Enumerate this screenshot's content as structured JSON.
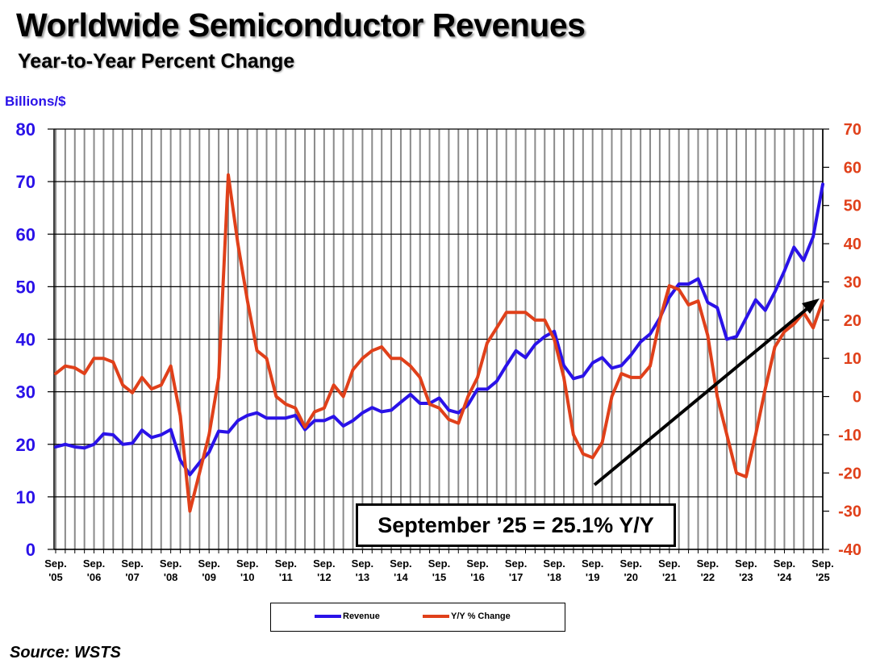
{
  "title": "Worldwide Semiconductor Revenues",
  "subtitle": "Year-to-Year Percent Change",
  "source": "Source: WSTS",
  "annotation": "September ’25 = 25.1% Y/Y",
  "chart_data": {
    "type": "line",
    "ylabel": "Billions/$",
    "ylim": [
      0,
      80
    ],
    "y2lim": [
      -40,
      70
    ],
    "yticks": [
      0,
      10,
      20,
      30,
      40,
      50,
      60,
      70,
      80
    ],
    "y2ticks": [
      -40,
      -30,
      -20,
      -10,
      0,
      10,
      20,
      30,
      40,
      50,
      60,
      70
    ],
    "xtick_labels": [
      [
        "Sep.",
        "'05"
      ],
      [
        "Sep.",
        "'06"
      ],
      [
        "Sep.",
        "'07"
      ],
      [
        "Sep.",
        "'08"
      ],
      [
        "Sep.",
        "'09"
      ],
      [
        "Sep.",
        "'10"
      ],
      [
        "Sep.",
        "'11"
      ],
      [
        "Sep.",
        "'12"
      ],
      [
        "Sep.",
        "'13"
      ],
      [
        "Sep.",
        "'14"
      ],
      [
        "Sep.",
        "'15"
      ],
      [
        "Sep.",
        "'16"
      ],
      [
        "Sep.",
        "'17"
      ],
      [
        "Sep.",
        "'18"
      ],
      [
        "Sep.",
        "'19"
      ],
      [
        "Sep.",
        "'20"
      ],
      [
        "Sep.",
        "'21"
      ],
      [
        "Sep.",
        "'22"
      ],
      [
        "Sep.",
        "'23"
      ],
      [
        "Sep.",
        "'24"
      ],
      [
        "Sep.",
        "'25"
      ]
    ],
    "x_period": "quarterly, Sep 2005 – Sep 2025",
    "grid": true,
    "legend_placement": "bottom",
    "series": [
      {
        "name": "Revenue",
        "axis": "left",
        "color": "#2a12e8",
        "values": [
          19.5,
          20,
          19.5,
          19.3,
          20,
          22,
          21.8,
          20,
          20.2,
          22.7,
          21.3,
          21.8,
          22.8,
          17,
          14.2,
          16.5,
          18.5,
          22.5,
          22.3,
          24.5,
          25.5,
          26,
          25,
          25,
          25,
          25.5,
          22.8,
          24.5,
          24.5,
          25.3,
          23.5,
          24.5,
          26,
          27,
          26.2,
          26.5,
          28,
          29.5,
          27.8,
          27.8,
          28.8,
          26.5,
          26,
          27.5,
          30.5,
          30.5,
          32,
          35,
          37.8,
          36.5,
          39,
          40.5,
          41.5,
          35,
          32.5,
          33,
          35.5,
          36.5,
          34.5,
          35,
          37,
          39.5,
          41,
          44,
          48,
          50.5,
          50.5,
          51.5,
          47,
          46,
          40,
          40.5,
          44,
          47.5,
          45.5,
          49,
          53,
          57.5,
          55,
          59.5,
          69.5
        ]
      },
      {
        "name": "Y/Y % Change",
        "axis": "right",
        "color": "#e0401a",
        "values": [
          6,
          8,
          7.5,
          6,
          10,
          10,
          9,
          3,
          1,
          5,
          2,
          3,
          8,
          -5,
          -30,
          -20,
          -10,
          5,
          58,
          40,
          25,
          12,
          10,
          0,
          -2,
          -3,
          -8,
          -4,
          -3,
          3,
          0,
          7,
          10,
          12,
          13,
          10,
          10,
          8,
          5,
          -2,
          -3,
          -6,
          -7,
          0,
          5,
          14,
          18,
          22,
          22,
          22,
          20,
          20,
          15,
          5,
          -10,
          -15,
          -16,
          -12,
          0,
          6,
          5,
          5,
          8,
          20,
          29,
          28,
          24,
          25,
          16,
          0,
          -10,
          -20,
          -21,
          -10,
          2,
          13,
          17,
          19,
          22,
          18,
          25.1
        ]
      }
    ]
  }
}
